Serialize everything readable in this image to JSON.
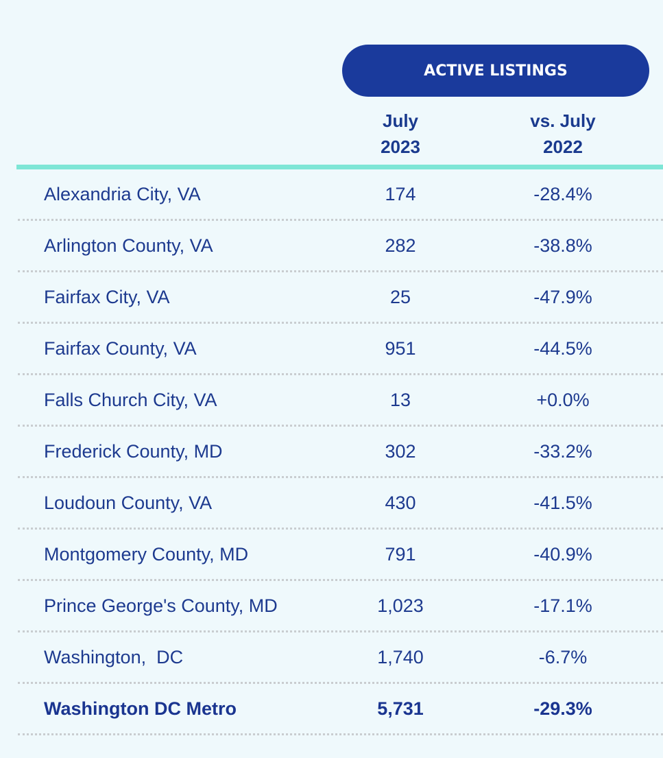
{
  "header": {
    "pill_label": "ACTIVE LISTINGS",
    "col1_line1": "July",
    "col1_line2": "2023",
    "col2_line1": "vs. July",
    "col2_line2": "2022"
  },
  "rows": [
    {
      "name": "Alexandria City, VA",
      "listings": "174",
      "change": "-28.4%"
    },
    {
      "name": "Arlington County, VA",
      "listings": "282",
      "change": "-38.8%"
    },
    {
      "name": "Fairfax City, VA",
      "listings": "25",
      "change": "-47.9%"
    },
    {
      "name": "Fairfax County, VA",
      "listings": "951",
      "change": "-44.5%"
    },
    {
      "name": "Falls Church City, VA",
      "listings": "13",
      "change": "+0.0%"
    },
    {
      "name": "Frederick County, MD",
      "listings": "302",
      "change": "-33.2%"
    },
    {
      "name": "Loudoun County, VA",
      "listings": "430",
      "change": "-41.5%"
    },
    {
      "name": "Montgomery County, MD",
      "listings": "791",
      "change": "-40.9%"
    },
    {
      "name": "Prince George's County, MD",
      "listings": "1,023",
      "change": "-17.1%"
    },
    {
      "name": "Washington,  DC",
      "listings": "1,740",
      "change": "-6.7%"
    },
    {
      "name": "Washington DC Metro",
      "listings": "5,731",
      "change": "-29.3%"
    }
  ],
  "colors": {
    "pill": "#1a3a9c",
    "text": "#1d3a8f",
    "rule": "#7ee6d6",
    "background": "#eff9fc"
  }
}
